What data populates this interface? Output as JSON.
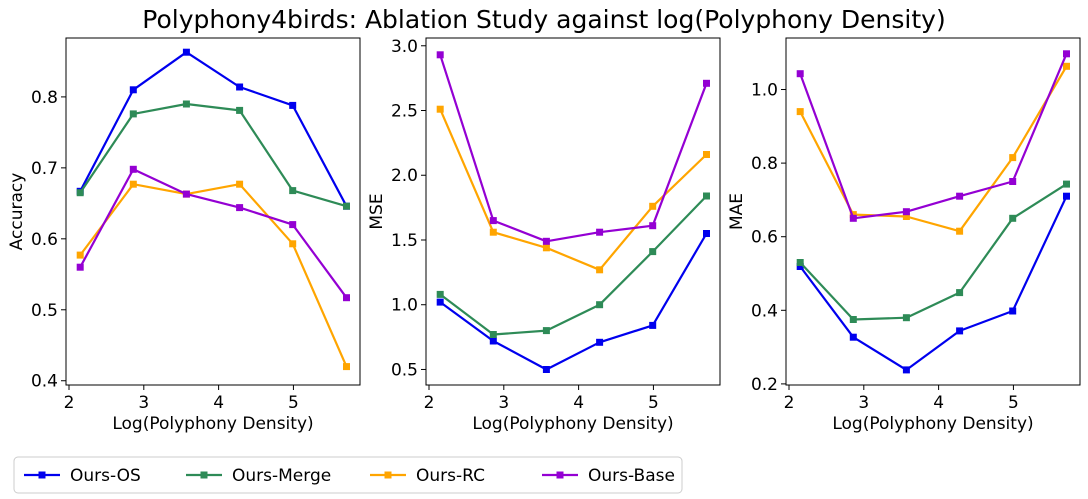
{
  "figure": {
    "title": "Polyphony4birds: Ablation Study against log(Polyphony Density)"
  },
  "series_styles": [
    {
      "name": "Ours-OS",
      "color": "#0000ee"
    },
    {
      "name": "Ours-Merge",
      "color": "#2e8b57"
    },
    {
      "name": "Ours-RC",
      "color": "#ffa500"
    },
    {
      "name": "Ours-Base",
      "color": "#9400d3"
    }
  ],
  "legend": {
    "placement": "bottom-left",
    "marker": "square"
  },
  "chart_data": [
    {
      "type": "line",
      "xlabel": "Log(Polyphony Density)",
      "ylabel": "Accuracy",
      "xlim": [
        1.96,
        5.89
      ],
      "ylim": [
        0.394,
        0.883
      ],
      "xticks": [
        2,
        3,
        4,
        5
      ],
      "yticks": [
        0.4,
        0.5,
        0.6,
        0.7,
        0.8
      ],
      "ytick_labels": [
        "0.4",
        "0.5",
        "0.6",
        "0.7",
        "0.8"
      ],
      "x": [
        2.15,
        2.86,
        3.57,
        4.28,
        4.99,
        5.71
      ],
      "series": [
        {
          "name": "Ours-OS",
          "values": [
            0.667,
            0.81,
            0.863,
            0.814,
            0.788,
            0.646
          ]
        },
        {
          "name": "Ours-Merge",
          "values": [
            0.665,
            0.776,
            0.79,
            0.781,
            0.668,
            0.646
          ]
        },
        {
          "name": "Ours-RC",
          "values": [
            0.577,
            0.677,
            0.663,
            0.677,
            0.593,
            0.42
          ]
        },
        {
          "name": "Ours-Base",
          "values": [
            0.56,
            0.698,
            0.663,
            0.644,
            0.62,
            0.517
          ]
        }
      ]
    },
    {
      "type": "line",
      "xlabel": "Log(Polyphony Density)",
      "ylabel": "MSE",
      "xlim": [
        1.96,
        5.89
      ],
      "ylim": [
        0.38,
        3.06
      ],
      "xticks": [
        2,
        3,
        4,
        5
      ],
      "yticks": [
        0.5,
        1.0,
        1.5,
        2.0,
        2.5,
        3.0
      ],
      "ytick_labels": [
        "0.5",
        "1.0",
        "1.5",
        "2.0",
        "2.5",
        "3.0"
      ],
      "x": [
        2.15,
        2.86,
        3.57,
        4.28,
        4.99,
        5.71
      ],
      "series": [
        {
          "name": "Ours-OS",
          "values": [
            1.02,
            0.72,
            0.5,
            0.71,
            0.84,
            1.55
          ]
        },
        {
          "name": "Ours-Merge",
          "values": [
            1.08,
            0.77,
            0.8,
            1.0,
            1.41,
            1.84
          ]
        },
        {
          "name": "Ours-RC",
          "values": [
            2.51,
            1.56,
            1.44,
            1.27,
            1.76,
            2.16
          ]
        },
        {
          "name": "Ours-Base",
          "values": [
            2.93,
            1.65,
            1.49,
            1.56,
            1.61,
            2.71
          ]
        }
      ]
    },
    {
      "type": "line",
      "xlabel": "Log(Polyphony Density)",
      "ylabel": "MAE",
      "xlim": [
        1.96,
        5.89
      ],
      "ylim": [
        0.197,
        1.14
      ],
      "xticks": [
        2,
        3,
        4,
        5
      ],
      "yticks": [
        0.2,
        0.4,
        0.6,
        0.8,
        1.0
      ],
      "ytick_labels": [
        "0.2",
        "0.4",
        "0.6",
        "0.8",
        "1.0"
      ],
      "x": [
        2.15,
        2.86,
        3.57,
        4.28,
        4.99,
        5.71
      ],
      "series": [
        {
          "name": "Ours-OS",
          "values": [
            0.519,
            0.327,
            0.238,
            0.344,
            0.398,
            0.71
          ]
        },
        {
          "name": "Ours-Merge",
          "values": [
            0.53,
            0.375,
            0.38,
            0.448,
            0.65,
            0.743
          ]
        },
        {
          "name": "Ours-RC",
          "values": [
            0.94,
            0.66,
            0.655,
            0.615,
            0.815,
            1.063
          ]
        },
        {
          "name": "Ours-Base",
          "values": [
            1.043,
            0.65,
            0.668,
            0.71,
            0.75,
            1.097
          ]
        }
      ]
    }
  ]
}
